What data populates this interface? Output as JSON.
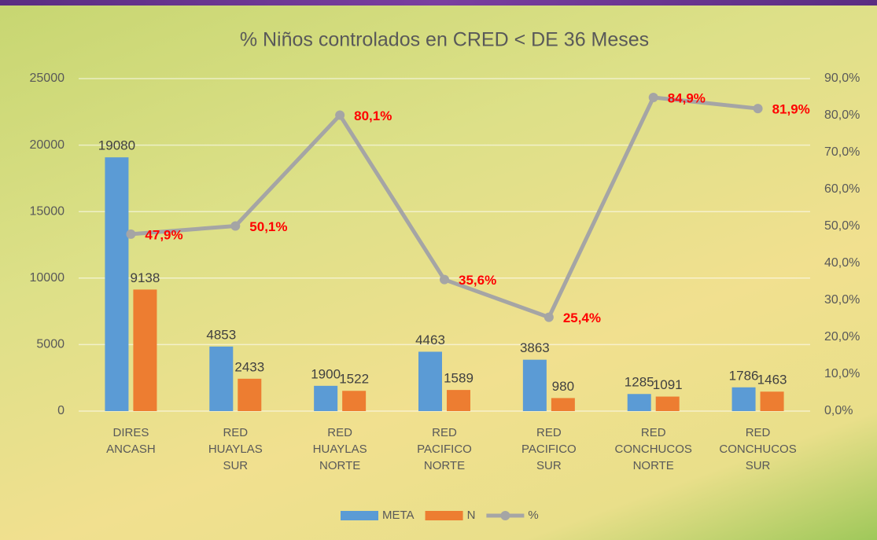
{
  "chart_data": {
    "type": "bar",
    "title": "% Niños controlados en CRED < DE 36 Meses",
    "categories": [
      "DIRES ANCASH",
      "RED HUAYLAS SUR",
      "RED HUAYLAS NORTE",
      "RED PACIFICO NORTE",
      "RED PACIFICO SUR",
      "RED CONCHUCOS NORTE",
      "RED CONCHUCOS SUR"
    ],
    "series": [
      {
        "name": "META",
        "color": "#5b9bd5",
        "values": [
          19080,
          4853,
          1900,
          4463,
          3863,
          1285,
          1786
        ]
      },
      {
        "name": "N",
        "color": "#ed7d31",
        "values": [
          9138,
          2433,
          1522,
          1589,
          980,
          1091,
          1463
        ]
      },
      {
        "name": "%",
        "color": "#a5a5a5",
        "axis": "y2",
        "type": "line",
        "values": [
          47.9,
          50.1,
          80.1,
          35.6,
          25.4,
          84.9,
          81.9
        ],
        "value_labels": [
          "47,9%",
          "50,1%",
          "80,1%",
          "35,6%",
          "25,4%",
          "84,9%",
          "81,9%"
        ],
        "label_color": "#ff0000"
      }
    ],
    "ylim": [
      0,
      25000
    ],
    "yticks": [
      0,
      5000,
      10000,
      15000,
      20000,
      25000
    ],
    "y2lim": [
      0,
      90
    ],
    "y2ticks": [
      {
        "value": 0,
        "label": "0,0%"
      },
      {
        "value": 10,
        "label": "10,0%"
      },
      {
        "value": 20,
        "label": "20,0%"
      },
      {
        "value": 30,
        "label": "30,0%"
      },
      {
        "value": 40,
        "label": "40,0%"
      },
      {
        "value": 50,
        "label": "50,0%"
      },
      {
        "value": 60,
        "label": "60,0%"
      },
      {
        "value": 70,
        "label": "70,0%"
      },
      {
        "value": 80,
        "label": "80,0%"
      },
      {
        "value": 90,
        "label": "90,0%"
      }
    ],
    "grid": true,
    "legend": "bottom"
  }
}
